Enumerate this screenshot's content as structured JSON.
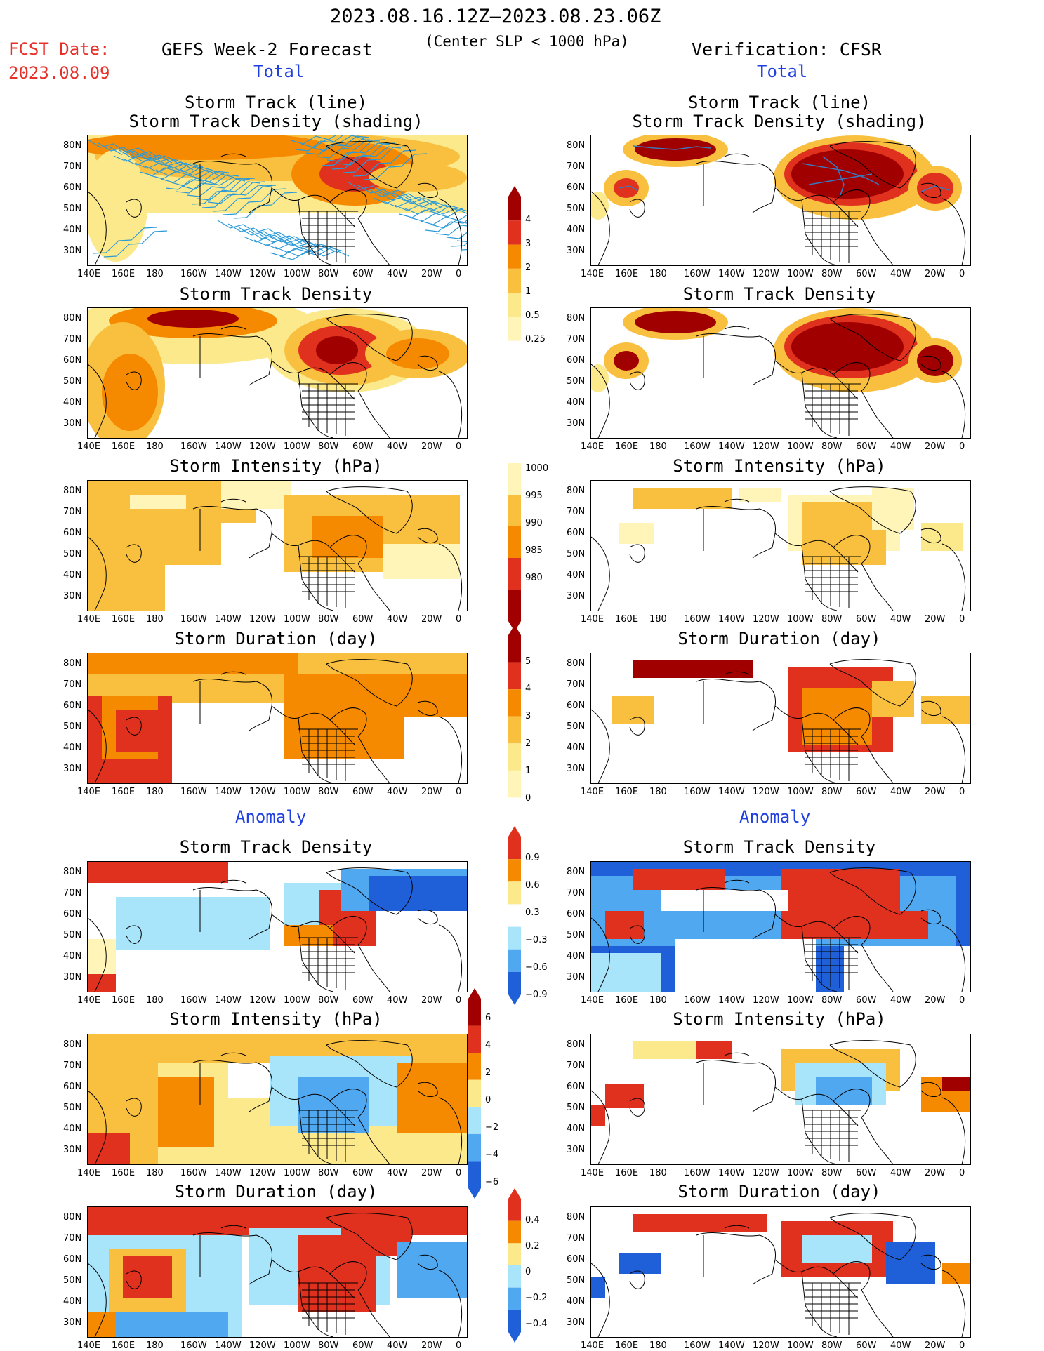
{
  "header": {
    "date_range": "2023.08.16.12Z–2023.08.23.06Z",
    "fcst_label": "FCST Date:",
    "fcst_date": "2023.08.09",
    "left_title": "GEFS Week-2 Forecast",
    "center_note": "(Center SLP < 1000 hPa)",
    "right_title": "Verification: CFSR",
    "total_label": "Total",
    "anomaly_label": "Anomaly"
  },
  "axes": {
    "lat_labels": [
      "80N",
      "70N",
      "60N",
      "50N",
      "40N",
      "30N"
    ],
    "lon_labels": [
      "140E",
      "160E",
      "180",
      "160W",
      "140W",
      "120W",
      "100W",
      "80W",
      "60W",
      "40W",
      "20W",
      "0"
    ]
  },
  "panels": {
    "storm_track_line": "Storm Track (line)",
    "storm_track_shading": "Storm Track Density (shading)",
    "density": "Storm Track Density",
    "intensity": "Storm Intensity (hPa)",
    "duration": "Storm Duration (day)"
  },
  "colorbars": {
    "density_total": [
      "4",
      "3",
      "2",
      "1",
      "0.5",
      "0.25"
    ],
    "intensity_total": [
      "1000",
      "995",
      "990",
      "985",
      "980"
    ],
    "duration_total": [
      "5",
      "4",
      "3",
      "2",
      "1",
      "0"
    ],
    "density_anom": [
      "0.9",
      "0.6",
      "0.3",
      "−0.3",
      "−0.6",
      "−0.9"
    ],
    "intensity_anom": [
      "6",
      "4",
      "2",
      "0",
      "−2",
      "−4",
      "−6"
    ],
    "duration_anom": [
      "0.4",
      "0.2",
      "0",
      "−0.2",
      "−0.4"
    ]
  },
  "colors": {
    "dark_red": "#a00000",
    "red": "#e0301e",
    "orange": "#f58a00",
    "light_orange": "#f9c040",
    "pale_yellow": "#fbe98c",
    "pale": "#fff5b8",
    "light_blue": "#a8e4fa",
    "mid_blue": "#50a8f0",
    "blue": "#1f60d8",
    "track_line": "#2a9ad8"
  }
}
